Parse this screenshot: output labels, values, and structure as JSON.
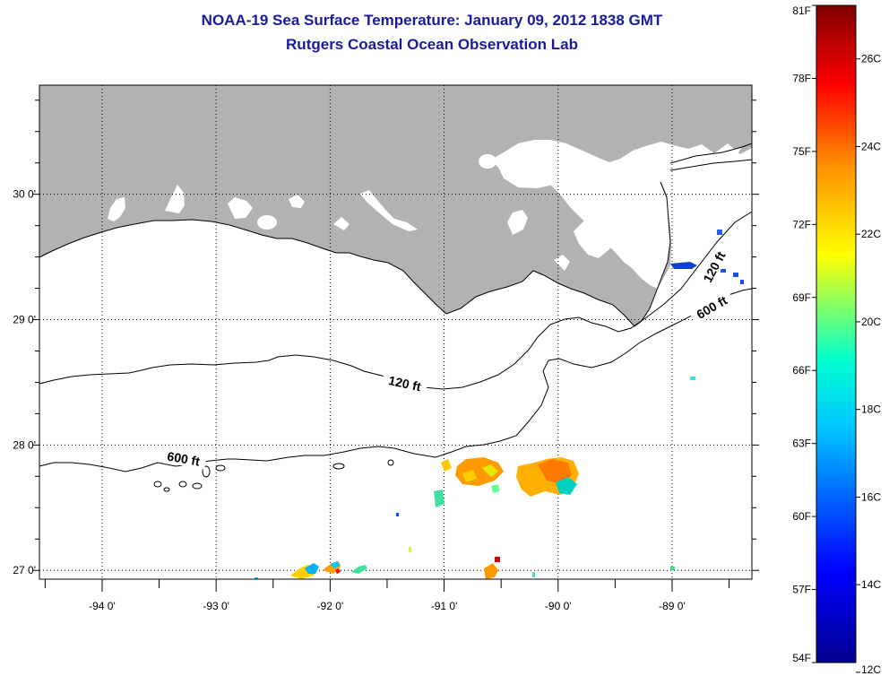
{
  "title": {
    "line1": "NOAA-19 Sea Surface Temperature:  January 09, 2012 1838 GMT",
    "line2": "Rutgers Coastal Ocean Observation Lab"
  },
  "map": {
    "lon_range": [
      -94.55,
      -88.3
    ],
    "lat_range": [
      26.93,
      30.87
    ],
    "lon_ticks": [
      {
        "value": -94,
        "label": "-94 0'"
      },
      {
        "value": -93,
        "label": "-93 0'"
      },
      {
        "value": -92,
        "label": "-92 0'"
      },
      {
        "value": -91,
        "label": "-91 0'"
      },
      {
        "value": -90,
        "label": "-90 0'"
      },
      {
        "value": -89,
        "label": "-89 0'"
      }
    ],
    "lat_ticks": [
      {
        "value": 27,
        "label": "27 0'"
      },
      {
        "value": 28,
        "label": "28 0'"
      },
      {
        "value": 29,
        "label": "29 0'"
      },
      {
        "value": 30,
        "label": "30 0'"
      }
    ],
    "land_color": "#b2b2b2",
    "contours": [
      {
        "label": "120 ft",
        "label_lon": -91.35,
        "label_lat": 28.47,
        "label_angle": 12
      },
      {
        "label": "600 ft",
        "label_lon": -93.29,
        "label_lat": 27.87,
        "label_angle": 10
      },
      {
        "label": "120 ft",
        "label_lon": -88.61,
        "label_lat": 29.41,
        "label_angle": -62
      },
      {
        "label": "600 ft",
        "label_lon": -88.64,
        "label_lat": 29.08,
        "label_angle": -30
      }
    ]
  },
  "colorbar": {
    "f_labels": [
      {
        "value": 54,
        "label": "54F"
      },
      {
        "value": 57,
        "label": "57F"
      },
      {
        "value": 60,
        "label": "60F"
      },
      {
        "value": 63,
        "label": "63F"
      },
      {
        "value": 66,
        "label": "66F"
      },
      {
        "value": 69,
        "label": "69F"
      },
      {
        "value": 72,
        "label": "72F"
      },
      {
        "value": 75,
        "label": "75F"
      },
      {
        "value": 78,
        "label": "78F"
      },
      {
        "value": 81,
        "label": "81F"
      }
    ],
    "c_labels": [
      {
        "value": 12,
        "label": "12C"
      },
      {
        "value": 14,
        "label": "14C"
      },
      {
        "value": 16,
        "label": "16C"
      },
      {
        "value": 18,
        "label": "18C"
      },
      {
        "value": 20,
        "label": "20C"
      },
      {
        "value": 22,
        "label": "22C"
      },
      {
        "value": 24,
        "label": "24C"
      },
      {
        "value": 26,
        "label": "26C"
      }
    ],
    "stops": [
      "#00008f",
      "#0000ff",
      "#00c8ff",
      "#00ffd0",
      "#ffff00",
      "#ff8c00",
      "#ff0000",
      "#800000"
    ]
  }
}
